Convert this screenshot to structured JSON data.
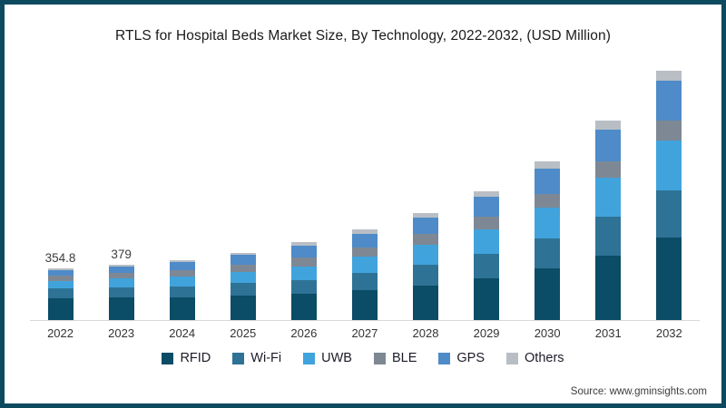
{
  "title": "RTLS for Hospital Beds Market Size, By Technology, 2022-2032, (USD Million)",
  "source": "Source: www.gminsights.com",
  "colors": {
    "frame_border": "#0d4a5f",
    "axis_line": "#d9d9d9",
    "title_text": "#1a1a1a",
    "label_text": "#3d3d3d"
  },
  "chart_data": {
    "type": "bar",
    "stacked": true,
    "title": "RTLS for Hospital Beds Market Size, By Technology, 2022-2032, (USD Million)",
    "unit": "USD Million",
    "categories": [
      "2022",
      "2023",
      "2024",
      "2025",
      "2026",
      "2027",
      "2028",
      "2029",
      "2030",
      "2031",
      "2032"
    ],
    "series": [
      {
        "name": "RFID",
        "color": "#0b4c66",
        "values": [
          152.4,
          157.3,
          157.9,
          167.4,
          179.2,
          206.3,
          240.5,
          287.5,
          355.9,
          446.9,
          567.6
        ]
      },
      {
        "name": "Wi-Fi",
        "color": "#2e7396",
        "values": [
          63.9,
          68.2,
          75.9,
          86.0,
          99.0,
          121.9,
          140.6,
          169.1,
          208.1,
          265.4,
          326.8
        ]
      },
      {
        "name": "UWB",
        "color": "#41a3dc",
        "values": [
          55.0,
          60.6,
          67.7,
          79.1,
          92.6,
          108.1,
          136.9,
          169.1,
          210.2,
          266.8,
          344.0
        ]
      },
      {
        "name": "BLE",
        "color": "#7e8894",
        "values": [
          37.3,
          39.8,
          45.1,
          51.2,
          62.6,
          65.6,
          74.0,
          84.6,
          96.4,
          114.1,
          137.6
        ]
      },
      {
        "name": "GPS",
        "color": "#4e8bc8",
        "values": [
          37.3,
          41.7,
          51.3,
          65.1,
          79.2,
          93.8,
          112.5,
          138.0,
          175.2,
          220.0,
          275.2
        ]
      },
      {
        "name": "Others",
        "color": "#b8bec4",
        "values": [
          8.9,
          11.4,
          12.3,
          16.3,
          22.5,
          29.4,
          35.5,
          41.8,
          49.3,
          61.9,
          68.8
        ]
      }
    ],
    "totals": [
      354.8,
      379,
      410,
      465,
      535,
      625,
      740,
      890,
      1095,
      1375,
      1720
    ],
    "bar_labels": [
      "354.8",
      "379",
      "",
      "",
      "",
      "",
      "",
      "",
      "",
      "",
      ""
    ],
    "ylim": [
      0,
      1800
    ],
    "grid": false,
    "legend_position": "bottom"
  }
}
